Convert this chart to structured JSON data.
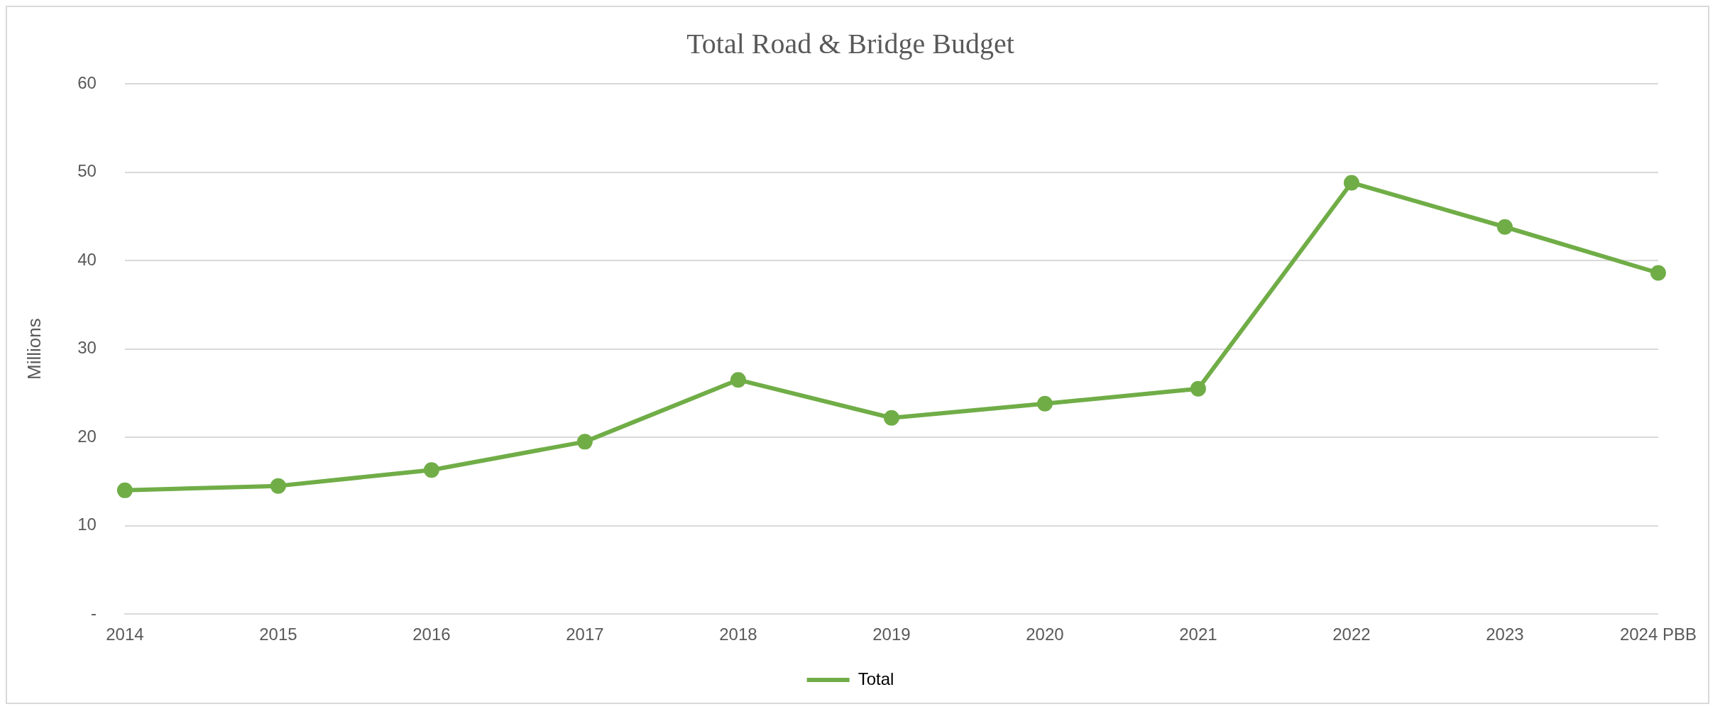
{
  "chart_data": {
    "type": "line",
    "title": "Total Road & Bridge Budget",
    "ylabel": "Millions",
    "categories": [
      "2014",
      "2015",
      "2016",
      "2017",
      "2018",
      "2019",
      "2020",
      "2021",
      "2022",
      "2023",
      "2024 PBB"
    ],
    "series": [
      {
        "name": "Total",
        "color": "#70ad47",
        "values": [
          14.0,
          14.5,
          16.3,
          19.5,
          26.5,
          22.2,
          23.8,
          25.5,
          48.8,
          43.8,
          38.6
        ]
      }
    ],
    "ylim": [
      0,
      60
    ],
    "yticks": [
      {
        "value": 0,
        "label": "-"
      },
      10,
      20,
      30,
      40,
      50,
      60
    ],
    "grid": "y",
    "legend": "bottom",
    "marker": "circle",
    "line_style": "solid"
  }
}
